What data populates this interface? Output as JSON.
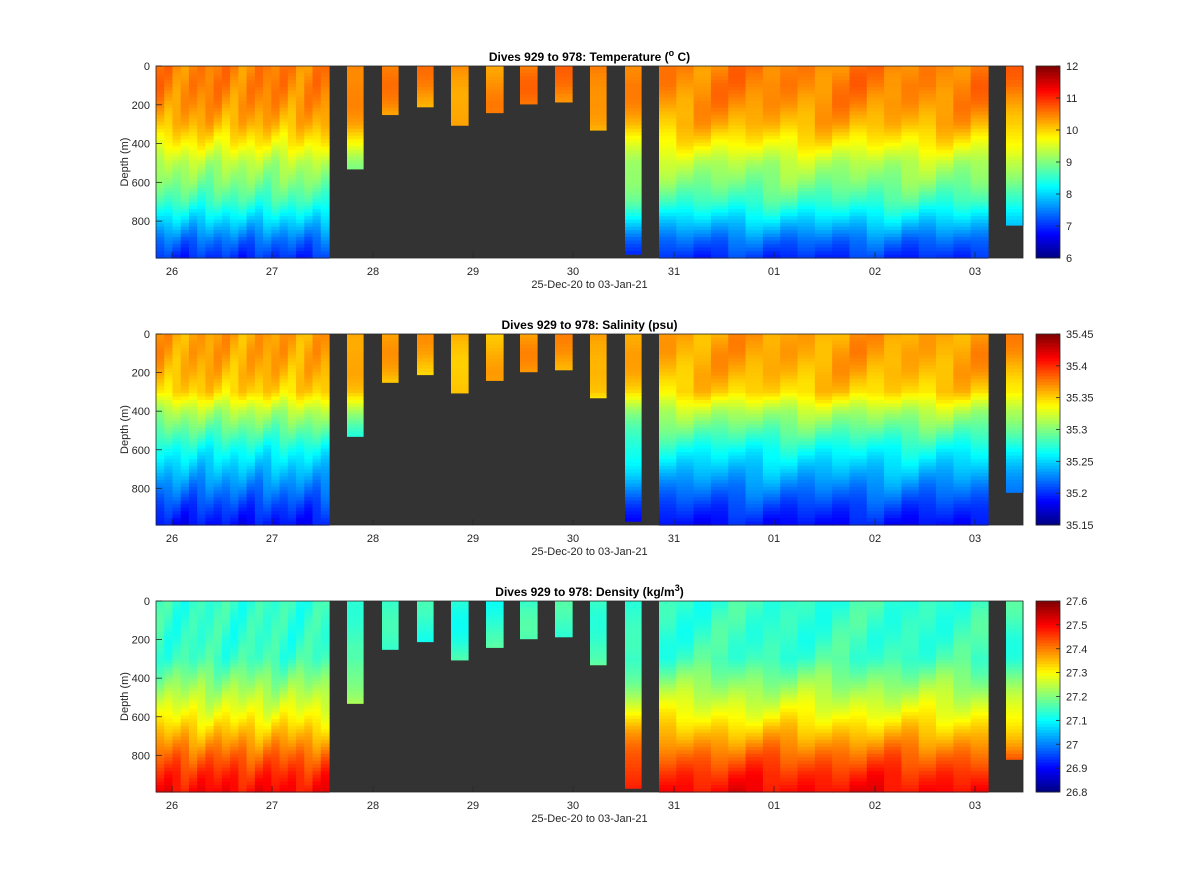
{
  "colormap": "jet",
  "background_color": "#333333",
  "x_axis": {
    "xlabel": "25-Dec-20 to 03-Jan-21",
    "tick_labels": [
      "26",
      "27",
      "28",
      "29",
      "30",
      "31",
      "01",
      "02",
      "03"
    ]
  },
  "y_axis": {
    "ylabel": "Depth (m)",
    "ylim": [
      0,
      990
    ],
    "reversed": true,
    "ticks": [
      0,
      200,
      400,
      600,
      800
    ]
  },
  "chart_data": [
    {
      "type": "heatmap",
      "title": "Dives 929 to 978: Temperature (° C)",
      "title_parts": {
        "pre": "Dives 929 to 978: Temperature (",
        "sup": "o",
        "post": " C)"
      },
      "xlabel": "25-Dec-20 to 03-Jan-21",
      "ylabel": "Depth (m)",
      "xlim_days": [
        25.85,
        34.5
      ],
      "ylim": [
        0,
        990
      ],
      "clim": [
        6,
        12
      ],
      "colorbar_ticks": [
        "6",
        "7",
        "8",
        "9",
        "10",
        "11",
        "12"
      ],
      "profile_max_depth_m": [
        990,
        990,
        990,
        990,
        990,
        990,
        990,
        990,
        990,
        990,
        990,
        990,
        990,
        990,
        990,
        990,
        990,
        990,
        990,
        990,
        990,
        530,
        250,
        210,
        305,
        240,
        195,
        185,
        330,
        970,
        990,
        990,
        990,
        990,
        990,
        990,
        990,
        990,
        990,
        990,
        990,
        990,
        990,
        990,
        990,
        990,
        990,
        990,
        990,
        820
      ],
      "profile_values_at_depth": {
        "depths_m": [
          0,
          100,
          200,
          300,
          400,
          500,
          600,
          700,
          800,
          900,
          990
        ],
        "typical_values": [
          10.5,
          10.5,
          10.4,
          10.2,
          9.8,
          9.3,
          9.0,
          8.6,
          8.0,
          7.4,
          7.0
        ]
      }
    },
    {
      "type": "heatmap",
      "title": "Dives 929 to 978: Salinity (psu)",
      "xlabel": "25-Dec-20 to 03-Jan-21",
      "ylabel": "Depth (m)",
      "xlim_days": [
        25.85,
        34.5
      ],
      "ylim": [
        0,
        990
      ],
      "clim": [
        35.15,
        35.45
      ],
      "colorbar_ticks": [
        "35.15",
        "35.2",
        "35.25",
        "35.3",
        "35.35",
        "35.4",
        "35.45"
      ],
      "profile_max_depth_m": [
        990,
        990,
        990,
        990,
        990,
        990,
        990,
        990,
        990,
        990,
        990,
        990,
        990,
        990,
        990,
        990,
        990,
        990,
        990,
        990,
        990,
        530,
        250,
        210,
        305,
        240,
        195,
        185,
        330,
        970,
        990,
        990,
        990,
        990,
        990,
        990,
        990,
        990,
        990,
        990,
        990,
        990,
        990,
        990,
        990,
        990,
        990,
        990,
        990,
        820
      ],
      "profile_values_at_depth": {
        "depths_m": [
          0,
          100,
          200,
          300,
          400,
          500,
          600,
          700,
          800,
          900,
          990
        ],
        "typical_values": [
          35.365,
          35.365,
          35.36,
          35.35,
          35.315,
          35.29,
          35.265,
          35.245,
          35.225,
          35.205,
          35.19
        ]
      }
    },
    {
      "type": "heatmap",
      "title": "Dives 929 to 978: Density (kg/m³)",
      "title_parts": {
        "pre": "Dives 929 to 978: Density (kg/m",
        "sup": "3",
        "post": ")"
      },
      "xlabel": "25-Dec-20 to 03-Jan-21",
      "ylabel": "Depth (m)",
      "xlim_days": [
        25.85,
        34.5
      ],
      "ylim": [
        0,
        990
      ],
      "clim": [
        26.8,
        27.6
      ],
      "colorbar_ticks": [
        "26.8",
        "26.9",
        "27",
        "27.1",
        "27.2",
        "27.3",
        "27.4",
        "27.5",
        "27.6"
      ],
      "profile_max_depth_m": [
        990,
        990,
        990,
        990,
        990,
        990,
        990,
        990,
        990,
        990,
        990,
        990,
        990,
        990,
        990,
        990,
        990,
        990,
        990,
        990,
        990,
        530,
        250,
        210,
        305,
        240,
        195,
        185,
        330,
        970,
        990,
        990,
        990,
        990,
        990,
        990,
        990,
        990,
        990,
        990,
        990,
        990,
        990,
        990,
        990,
        990,
        990,
        990,
        990,
        820
      ],
      "profile_values_at_depth": {
        "depths_m": [
          0,
          100,
          200,
          300,
          400,
          500,
          600,
          700,
          800,
          900,
          990
        ],
        "typical_values": [
          27.14,
          27.14,
          27.14,
          27.15,
          27.2,
          27.25,
          27.3,
          27.36,
          27.42,
          27.47,
          27.5
        ]
      }
    }
  ]
}
